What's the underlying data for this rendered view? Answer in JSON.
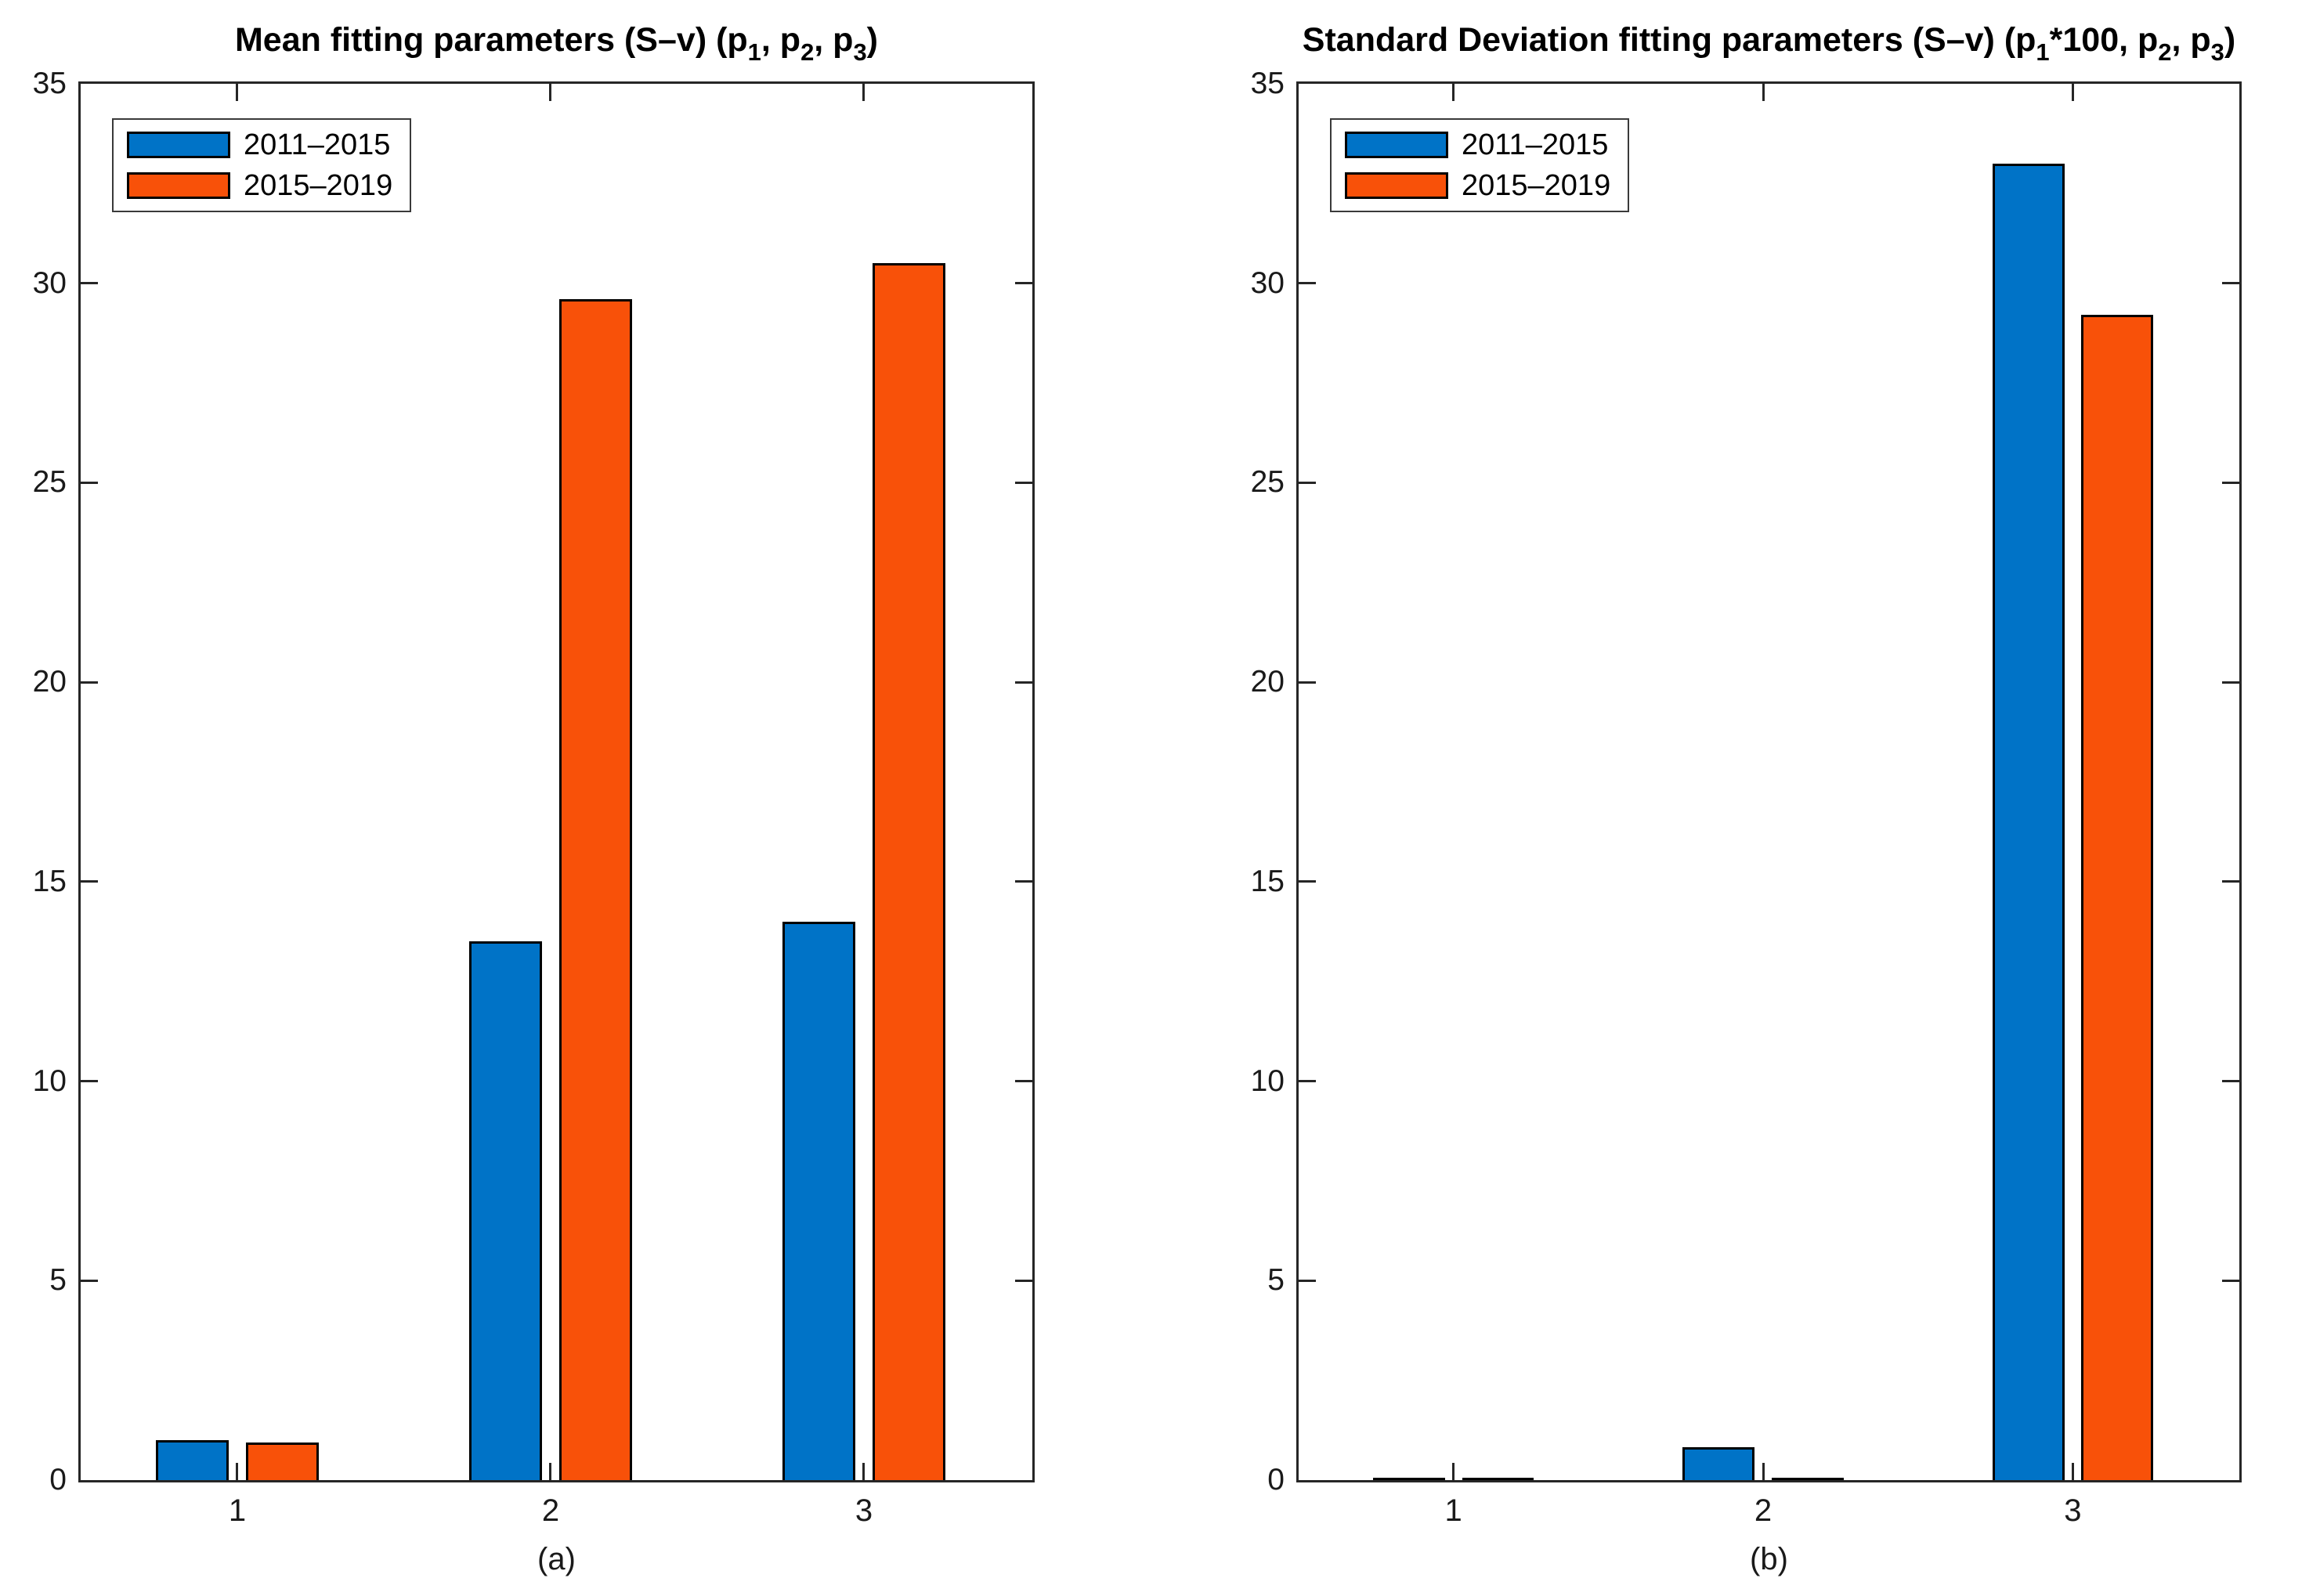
{
  "page": {
    "background": "#ffffff",
    "axes_color": "#262626"
  },
  "series_colors": {
    "blue": "#0073C7",
    "orange": "#F85109"
  },
  "chart_data": [
    {
      "type": "bar",
      "title_plain": "Mean fitting parameters (S–v) (p1, p2, p3)",
      "title_segments": [
        {
          "text": "Mean fitting parameters (S–v) (p"
        },
        {
          "text": "1",
          "sub": true
        },
        {
          "text": ", p"
        },
        {
          "text": "2",
          "sub": true
        },
        {
          "text": ", p"
        },
        {
          "text": "3",
          "sub": true
        },
        {
          "text": ")"
        }
      ],
      "sublabel": "(a)",
      "categories": [
        "1",
        "2",
        "3"
      ],
      "series": [
        {
          "name": "2011–2015",
          "color": "#0073C7",
          "values": [
            1.0,
            13.5,
            14.0
          ]
        },
        {
          "name": "2015–2019",
          "color": "#F85109",
          "values": [
            0.94,
            29.6,
            30.5
          ]
        }
      ],
      "ylim": [
        0,
        35
      ],
      "yticks": [
        0,
        5,
        10,
        15,
        20,
        25,
        30,
        35
      ],
      "grid": false,
      "legend_position": "top-left"
    },
    {
      "type": "bar",
      "title_plain": "Standard Deviation fitting parameters (S–v) (p1*100, p2, p3)",
      "title_segments": [
        {
          "text": "Standard Deviation fitting parameters (S–v) (p"
        },
        {
          "text": "1",
          "sub": true
        },
        {
          "text": "*100, p"
        },
        {
          "text": "2",
          "sub": true
        },
        {
          "text": ", p"
        },
        {
          "text": "3",
          "sub": true
        },
        {
          "text": ")"
        }
      ],
      "sublabel": "(b)",
      "categories": [
        "1",
        "2",
        "3"
      ],
      "series": [
        {
          "name": "2011–2015",
          "color": "#0073C7",
          "values": [
            0.06,
            0.82,
            33.0
          ]
        },
        {
          "name": "2015–2019",
          "color": "#F85109",
          "values": [
            0.06,
            0.02,
            29.2
          ]
        }
      ],
      "ylim": [
        0,
        35
      ],
      "yticks": [
        0,
        5,
        10,
        15,
        20,
        25,
        30,
        35
      ],
      "grid": false,
      "legend_position": "top-left"
    }
  ]
}
